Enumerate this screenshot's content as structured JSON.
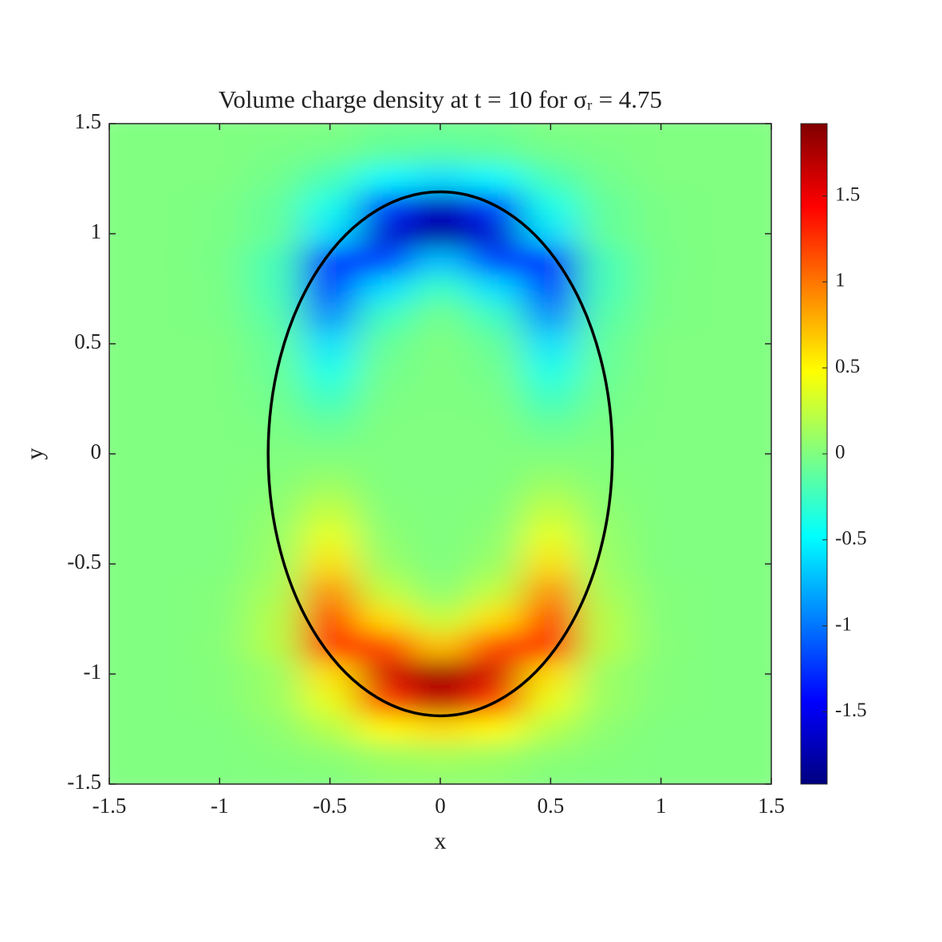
{
  "chart_data": {
    "type": "heatmap",
    "title": "Volume charge density at t = 10 for σᵣ = 4.75",
    "x_label": "x",
    "y_label": "y",
    "x": [
      -1.5,
      -1.25,
      -1,
      -0.75,
      -0.5,
      -0.25,
      0,
      0.25,
      0.5,
      0.75,
      1,
      1.25,
      1.5
    ],
    "y": [
      1.5,
      1.375,
      1.25,
      1.125,
      1,
      0.875,
      0.75,
      0.625,
      0.5,
      0.375,
      0.25,
      0.125,
      0,
      -0.125,
      -0.25,
      -0.375,
      -0.5,
      -0.625,
      -0.75,
      -0.875,
      -1,
      -1.125,
      -1.25,
      -1.375,
      -1.5
    ],
    "values": [
      [
        0,
        0,
        0,
        0,
        0,
        -0.05,
        -0.05,
        -0.05,
        0,
        0,
        0,
        0,
        0
      ],
      [
        0,
        0,
        0,
        -0.02,
        -0.05,
        -0.12,
        -0.15,
        -0.12,
        -0.05,
        -0.02,
        0,
        0,
        0
      ],
      [
        0,
        0,
        0,
        -0.05,
        -0.2,
        -0.5,
        -0.6,
        -0.5,
        -0.2,
        -0.05,
        0,
        0,
        0
      ],
      [
        0,
        0,
        -0.02,
        -0.1,
        -0.4,
        -1.2,
        -1.7,
        -1.2,
        -0.4,
        -0.1,
        -0.02,
        0,
        0
      ],
      [
        0,
        0,
        -0.02,
        -0.1,
        -0.6,
        -1.6,
        -1.8,
        -1.6,
        -0.6,
        -0.1,
        -0.02,
        0,
        0
      ],
      [
        0,
        0,
        -0.03,
        -0.2,
        -1.3,
        -1.2,
        -0.7,
        -1.2,
        -1.3,
        -0.2,
        -0.03,
        0,
        0
      ],
      [
        0,
        0,
        -0.02,
        -0.2,
        -1.2,
        -0.6,
        -0.25,
        -0.6,
        -1.2,
        -0.2,
        -0.02,
        0,
        0
      ],
      [
        0,
        0,
        -0.02,
        -0.15,
        -0.9,
        -0.25,
        -0.05,
        -0.25,
        -0.9,
        -0.15,
        -0.02,
        0,
        0
      ],
      [
        0,
        0,
        0,
        -0.1,
        -0.6,
        -0.1,
        0,
        -0.1,
        -0.6,
        -0.1,
        0,
        0,
        0
      ],
      [
        0,
        0,
        0,
        -0.08,
        -0.4,
        -0.05,
        0,
        -0.05,
        -0.4,
        -0.08,
        0,
        0,
        0
      ],
      [
        0,
        0,
        0,
        -0.05,
        -0.25,
        -0.02,
        0,
        -0.02,
        -0.25,
        -0.05,
        0,
        0,
        0
      ],
      [
        0,
        0,
        0,
        -0.02,
        -0.1,
        0,
        0,
        0,
        -0.1,
        -0.02,
        0,
        0,
        0
      ],
      [
        0,
        0,
        0,
        0,
        0,
        0,
        0,
        0,
        0,
        0,
        0,
        0,
        0
      ],
      [
        0,
        0,
        0,
        0.02,
        0.1,
        0,
        0,
        0,
        0.1,
        0.02,
        0,
        0,
        0
      ],
      [
        0,
        0,
        0,
        0.05,
        0.25,
        0.02,
        0,
        0.02,
        0.25,
        0.05,
        0,
        0,
        0
      ],
      [
        0,
        0,
        0,
        0.08,
        0.4,
        0.05,
        0,
        0.05,
        0.4,
        0.08,
        0,
        0,
        0
      ],
      [
        0,
        0,
        0,
        0.1,
        0.6,
        0.1,
        0,
        0.1,
        0.6,
        0.1,
        0,
        0,
        0
      ],
      [
        0,
        0,
        0.02,
        0.15,
        0.9,
        0.25,
        0.05,
        0.25,
        0.9,
        0.15,
        0.02,
        0,
        0
      ],
      [
        0,
        0,
        0.02,
        0.2,
        1.2,
        0.6,
        0.25,
        0.6,
        1.2,
        0.2,
        0.02,
        0,
        0
      ],
      [
        0,
        0,
        0.03,
        0.2,
        1.3,
        1.2,
        0.7,
        1.2,
        1.3,
        0.2,
        0.03,
        0,
        0
      ],
      [
        0,
        0,
        0.02,
        0.1,
        0.6,
        1.6,
        1.8,
        1.6,
        0.6,
        0.1,
        0.02,
        0,
        0
      ],
      [
        0,
        0,
        0.02,
        0.1,
        0.4,
        1.2,
        1.7,
        1.2,
        0.4,
        0.1,
        0.02,
        0,
        0
      ],
      [
        0,
        0,
        0,
        0.05,
        0.2,
        0.5,
        0.6,
        0.5,
        0.2,
        0.05,
        0,
        0,
        0
      ],
      [
        0,
        0,
        0,
        0.02,
        0.05,
        0.12,
        0.15,
        0.12,
        0.05,
        0.02,
        0,
        0,
        0
      ],
      [
        0,
        0,
        0,
        0,
        0,
        0.05,
        0.05,
        0.05,
        0,
        0,
        0,
        0,
        0
      ]
    ],
    "boundary": {
      "a": 0.78,
      "b": 1.19
    },
    "xlim": [
      -1.5,
      1.5
    ],
    "ylim": [
      -1.5,
      1.5
    ],
    "xticks": [
      -1.5,
      -1,
      -0.5,
      0,
      0.5,
      1,
      1.5
    ],
    "yticks": [
      -1.5,
      -1,
      -0.5,
      0,
      0.5,
      1,
      1.5
    ],
    "colormap": "jet",
    "clim": [
      -1.92,
      1.92
    ],
    "cticks": [
      -1.5,
      -1,
      -0.5,
      0,
      0.5,
      1,
      1.5
    ]
  }
}
